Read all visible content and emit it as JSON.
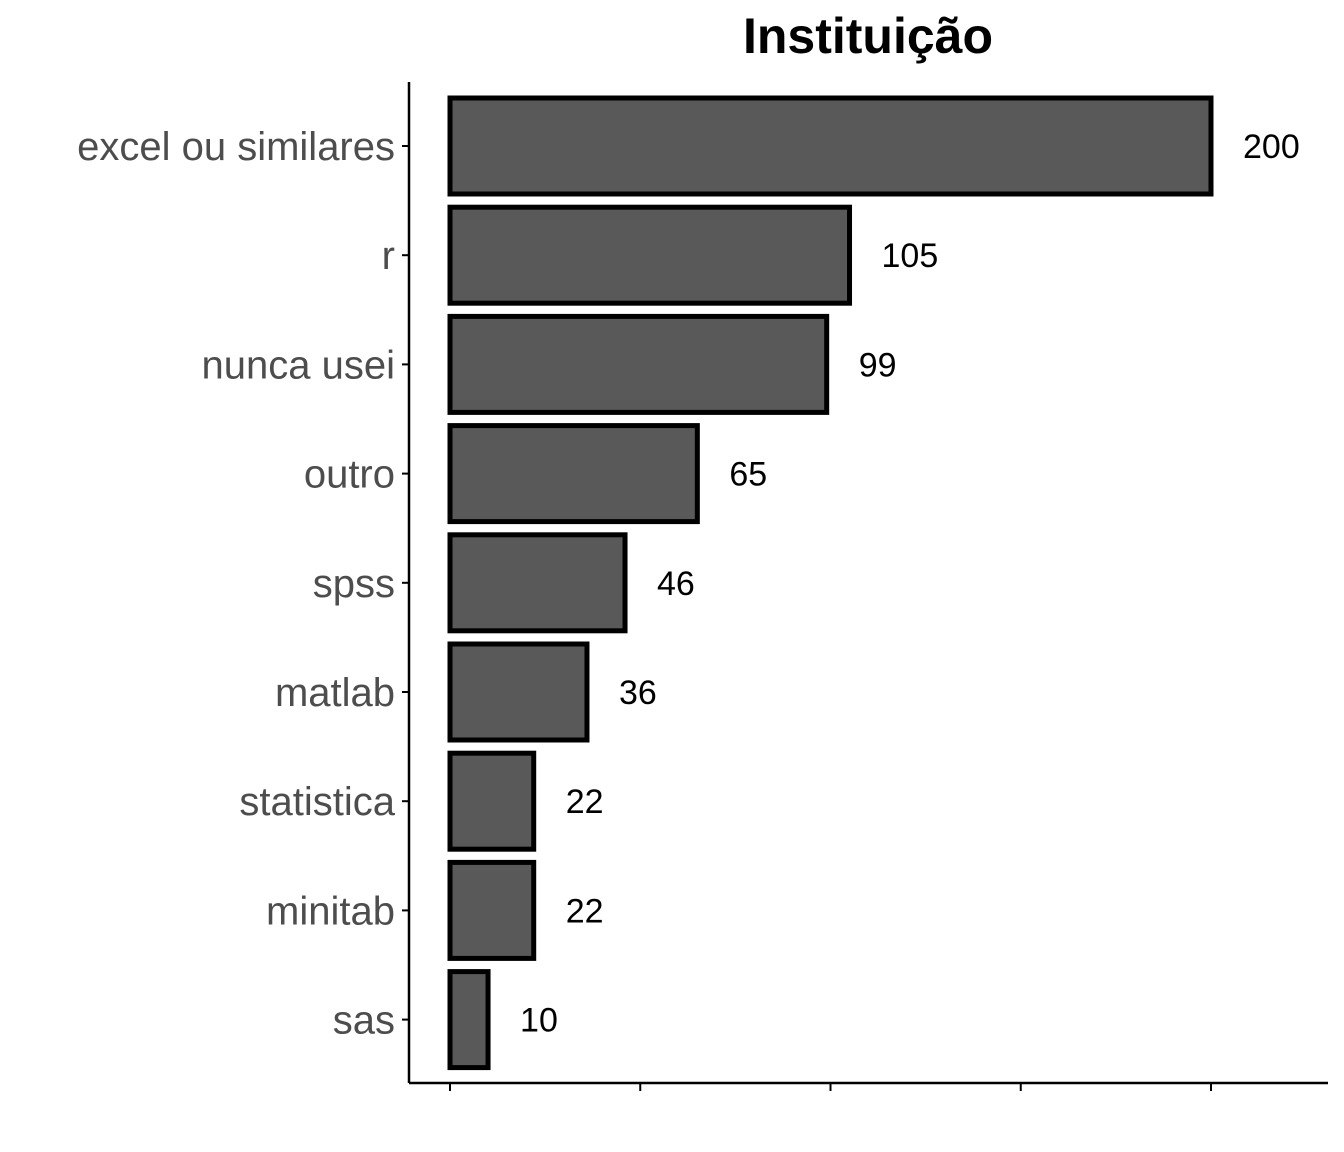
{
  "chart_data": {
    "type": "bar",
    "orientation": "horizontal",
    "title": "Instituição",
    "xlabel": "",
    "ylabel": "",
    "categories": [
      "excel ou similares",
      "r",
      "nunca usei",
      "outro",
      "spss",
      "matlab",
      "statistica",
      "minitab",
      "sas"
    ],
    "values": [
      200,
      105,
      99,
      65,
      46,
      36,
      22,
      22,
      10
    ],
    "value_labels": [
      "200",
      "105",
      "99",
      "65",
      "46",
      "36",
      "22",
      "22",
      "10"
    ],
    "xlim": [
      0,
      220
    ],
    "x_ticks": [
      0,
      50,
      100,
      150,
      200
    ],
    "x_tick_labels_shown": false,
    "grid": false,
    "legend": "none",
    "colors": {
      "bar_fill": "#595959",
      "bar_stroke": "#000000",
      "axis": "#000000",
      "category_text": "#4d4d4d",
      "value_text": "#000000"
    }
  }
}
